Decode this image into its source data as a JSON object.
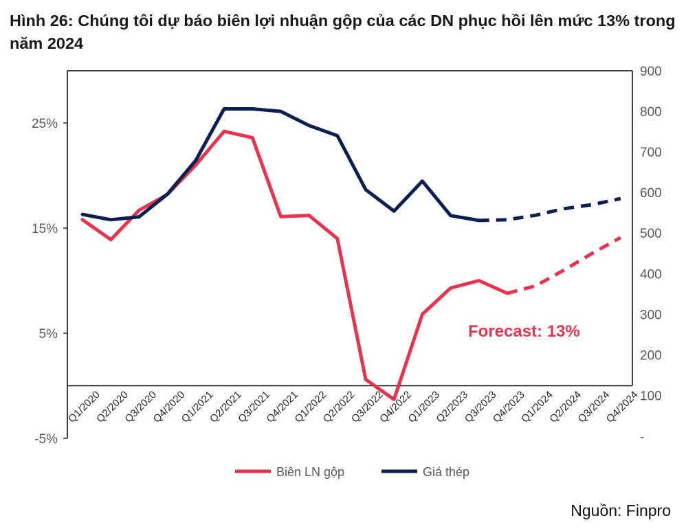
{
  "figure_title": "Hình 26: Chúng tôi dự báo biên lợi nhuận gộp của các DN phục hồi lên mức 13% trong năm 2024",
  "source": "Nguồn: Finpro",
  "chart_data": {
    "type": "line",
    "categories": [
      "Q1/2020",
      "Q2/2020",
      "Q3/2020",
      "Q4/2020",
      "Q1/2021",
      "Q2/2021",
      "Q3/2021",
      "Q4/2021",
      "Q1/2022",
      "Q2/2022",
      "Q3/2022",
      "Q4/2022",
      "Q1/2023",
      "Q2/2023",
      "Q3/2023",
      "Q4/2023",
      "Q1/2024",
      "Q2/2024",
      "Q3/2024",
      "Q4/2024"
    ],
    "left_axis": {
      "ylim": [
        -5,
        30
      ],
      "ticks": [
        "25%",
        "15%",
        "5%",
        "-5%"
      ],
      "tick_values": [
        25,
        15,
        5,
        -5
      ]
    },
    "right_axis": {
      "ylim": [
        100,
        900
      ],
      "ticks": [
        "900",
        "800",
        "700",
        "600",
        "500",
        "400",
        "300",
        "200",
        "100"
      ],
      "tick_values": [
        900,
        800,
        700,
        600,
        500,
        400,
        300,
        200,
        100
      ],
      "extra_tick": "-"
    },
    "zero_line": 0,
    "series": [
      {
        "name": "Biên LN gộp",
        "axis": "left",
        "color": "#e8334f",
        "values": [
          15.8,
          13.9,
          16.7,
          18.2,
          21.0,
          24.2,
          23.6,
          16.1,
          16.2,
          14.0,
          0.6,
          -1.3,
          6.8,
          9.3,
          10.0,
          8.8,
          9.5,
          11.0,
          12.6,
          14.1
        ],
        "forecast_from": 15
      },
      {
        "name": "Giá thép",
        "axis": "right",
        "color": "#0d1f4f",
        "values": [
          546,
          533,
          540,
          596,
          679,
          806,
          806,
          800,
          765,
          740,
          607,
          554,
          628,
          543,
          531,
          533,
          544,
          560,
          570,
          585
        ],
        "forecast_from": 14
      }
    ],
    "annotations": [
      {
        "text": "Forecast: 13%",
        "color": "#e8334f"
      }
    ],
    "legend_position": "bottom",
    "grid": false
  }
}
